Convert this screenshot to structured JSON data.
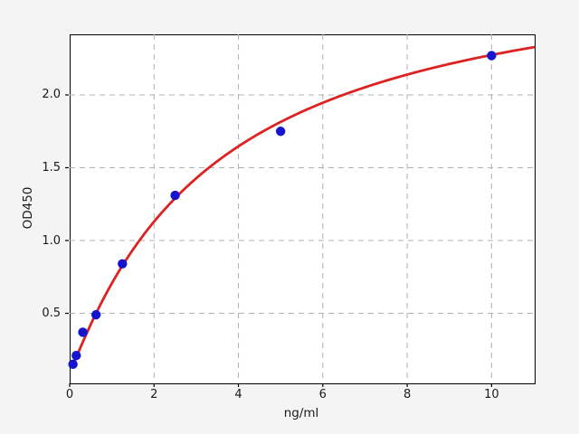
{
  "chart_data": {
    "type": "scatter",
    "title": "",
    "xlabel": "ng/ml",
    "ylabel": "OD450",
    "xlim": [
      0,
      11
    ],
    "ylim": [
      0.025,
      2.416
    ],
    "x_ticks": [
      0,
      2,
      4,
      6,
      8,
      10
    ],
    "y_ticks": [
      0.5,
      1.0,
      1.5,
      2.0
    ],
    "grid": true,
    "legend": "none",
    "points": [
      {
        "x": 0.078,
        "y": 0.15
      },
      {
        "x": 0.156,
        "y": 0.21
      },
      {
        "x": 0.312,
        "y": 0.37
      },
      {
        "x": 0.625,
        "y": 0.49
      },
      {
        "x": 1.25,
        "y": 0.84
      },
      {
        "x": 2.5,
        "y": 1.31
      },
      {
        "x": 5,
        "y": 1.75
      },
      {
        "x": 10,
        "y": 2.27
      }
    ],
    "fit_curve": {
      "model": "4PL",
      "a": 0.09,
      "b": 1.05,
      "c": 3.5,
      "d": 3.0,
      "x_start": 0.078,
      "x_end": 11
    },
    "colors": {
      "points": "#1515cd",
      "curve": "#dd2222",
      "grid": "#b0b0b0",
      "figure_bg": "#f4f4f4",
      "axes_bg": "#ffffff",
      "spine": "#000000",
      "text": "#1a1a1a"
    }
  }
}
